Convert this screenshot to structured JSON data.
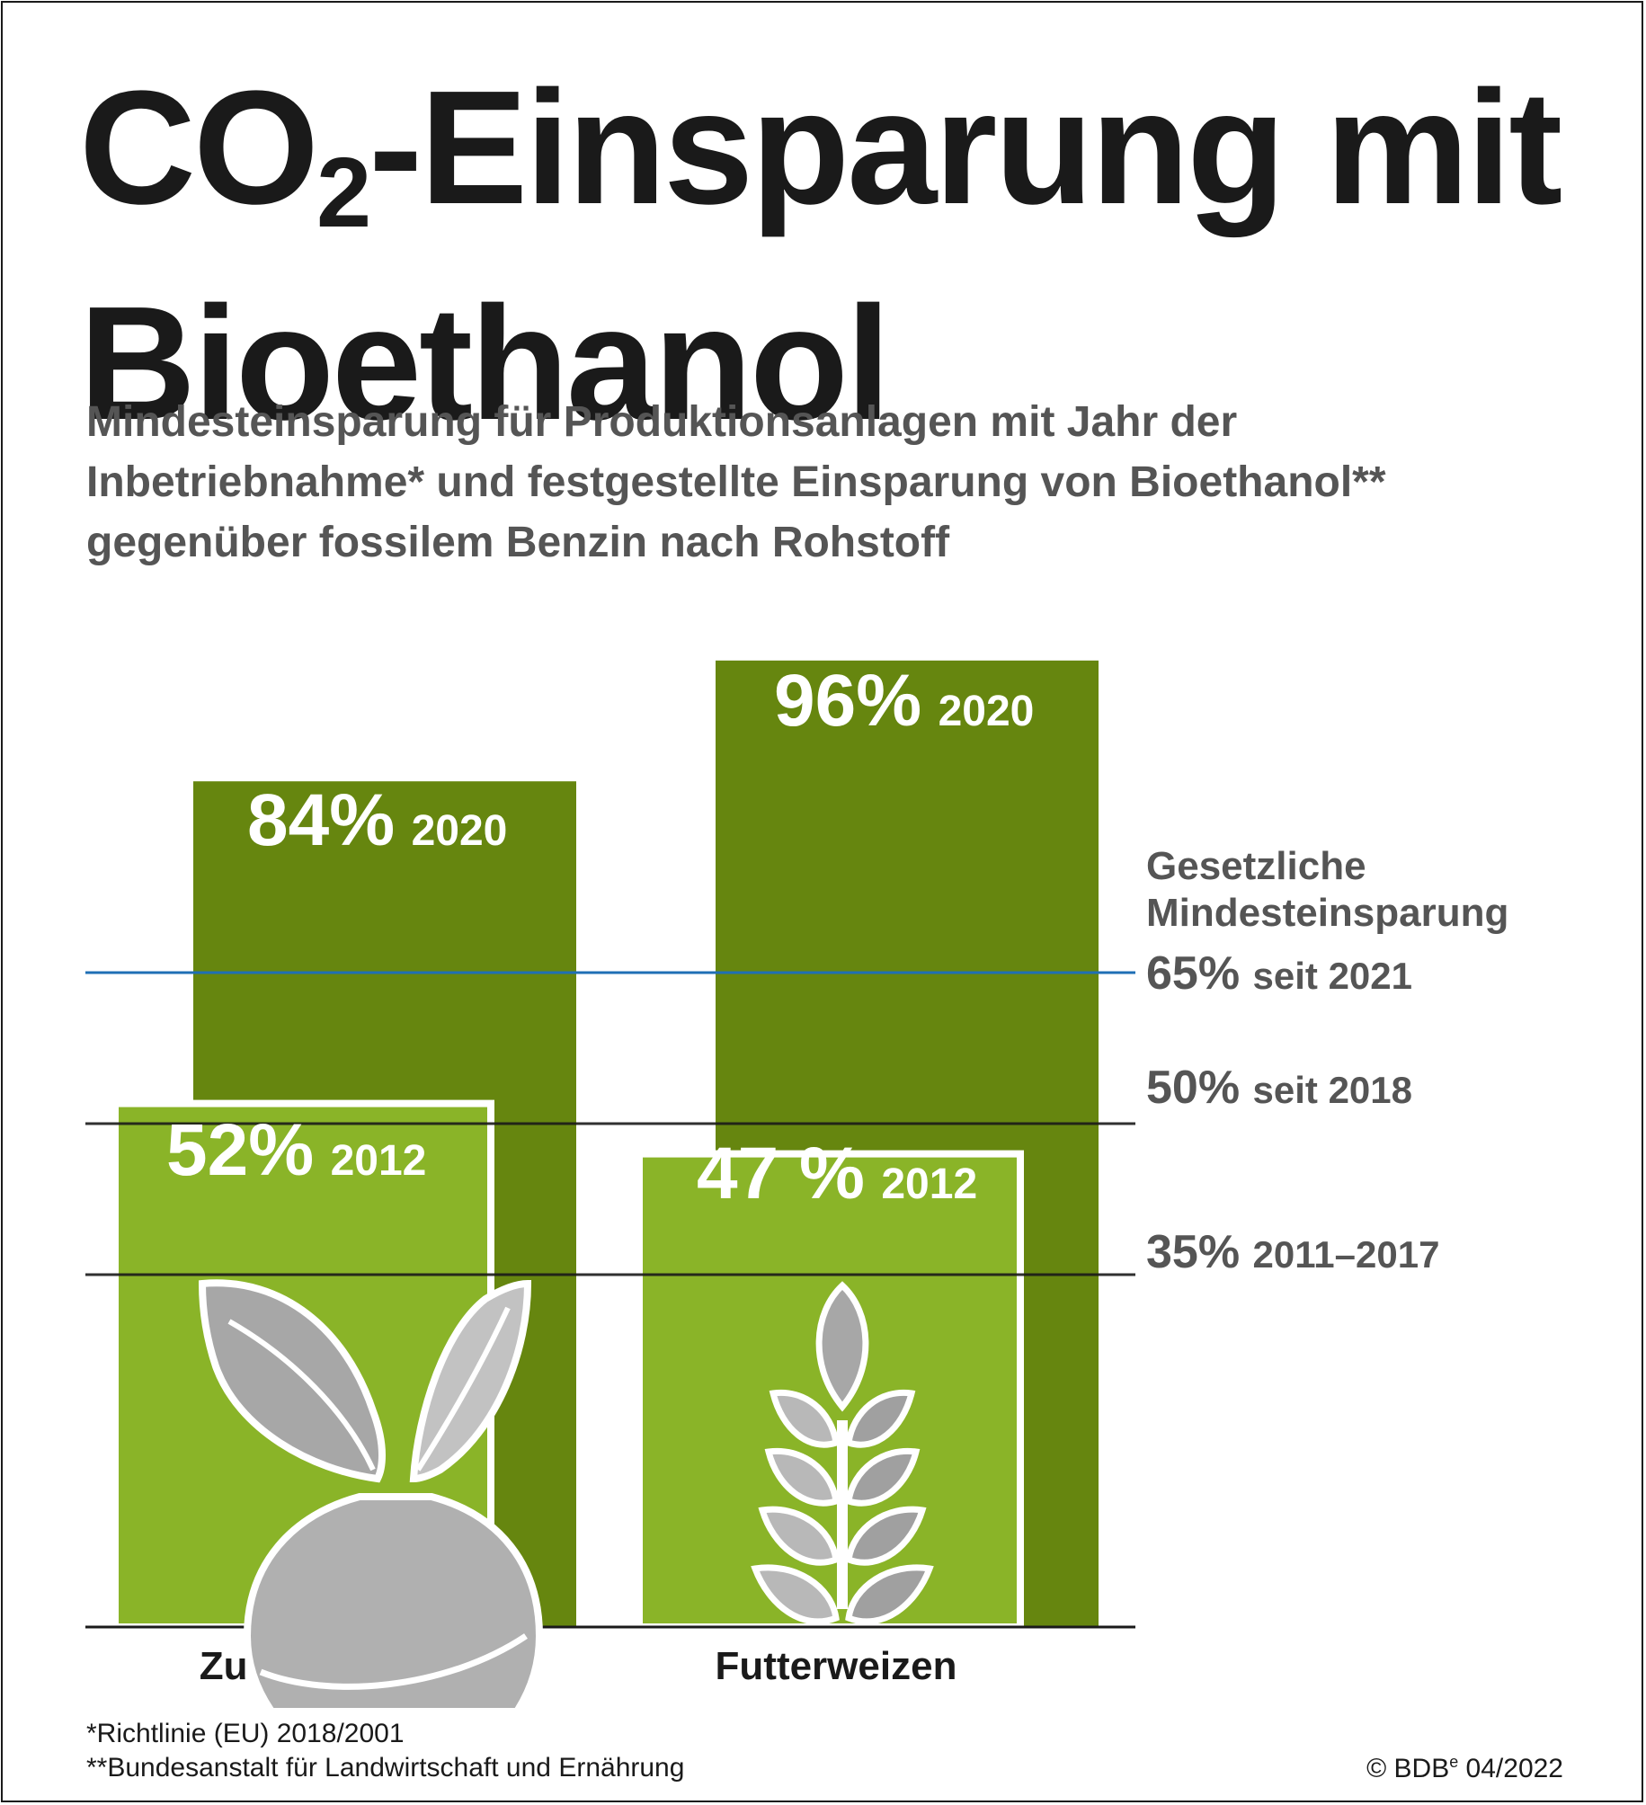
{
  "header": {
    "title_line1_pre": "CO",
    "title_line1_sub": "2",
    "title_line1_post": "-Einsparung mit",
    "title_line2": "Bioethanol",
    "subtitle": "Mindesteinsparung für Produktionsanlagen mit Jahr der Inbetriebnahme* und festgestellte Einsparung von Bioethanol** gegenüber fossilem Benzin nach Rohstoff"
  },
  "colors": {
    "bar_2020": "#66860f",
    "bar_2012": "#8ab428",
    "line_2021": "#1f6fb5",
    "line_default": "#1a1a1a",
    "icon_fill": "#b5b5b5",
    "icon_outline": "#ffffff"
  },
  "chart_data": {
    "type": "bar",
    "categories": [
      "Zuckerrüben",
      "Futterweizen"
    ],
    "icons": [
      "sugar-beet-icon",
      "wheat-icon"
    ],
    "ylim": [
      0,
      100
    ],
    "series": [
      {
        "year_label": "2020",
        "values": [
          84,
          96
        ],
        "value_labels": [
          "84%",
          "96%"
        ]
      },
      {
        "year_label": "2012",
        "values": [
          52,
          47
        ],
        "value_labels": [
          "52%",
          "47 %"
        ]
      }
    ],
    "reference_lines": {
      "heading_line1": "Gesetzliche",
      "heading_line2": "Mindesteinsparung",
      "items": [
        {
          "value": 65,
          "value_label": "65%",
          "period": "seit 2021"
        },
        {
          "value": 50,
          "value_label": "50%",
          "period": "seit 2018"
        },
        {
          "value": 35,
          "value_label": "35%",
          "period": "2011–2017"
        }
      ]
    }
  },
  "footer": {
    "footnote1": "*Richtlinie (EU) 2018/2001",
    "footnote2": "**Bundesanstalt für Landwirtschaft und Ernährung",
    "copyright_pre": "© BDB",
    "copyright_sup": "e",
    "copyright_post": " 04/2022"
  }
}
